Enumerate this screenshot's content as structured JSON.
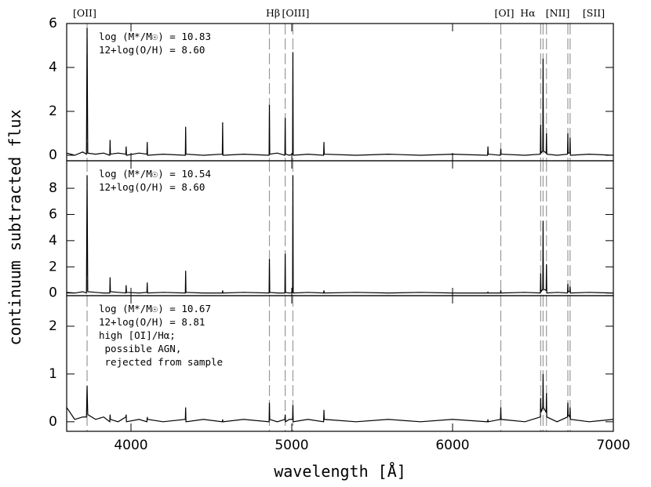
{
  "chart_data": [
    {
      "type": "line",
      "xlim": [
        3600,
        7000
      ],
      "ylim": [
        -0.25,
        6
      ],
      "yticks": [
        0,
        2,
        4,
        6
      ],
      "annotation": [
        "log (M*/M☉) = 10.83",
        "12+log(O/H) = 8.60"
      ],
      "line_labels": [
        {
          "text": "[OII]",
          "x": 3712
        },
        {
          "text": "Hβ",
          "x": 4883
        },
        {
          "text": "[OIII]",
          "x": 5024
        },
        {
          "text": "[OI]",
          "x": 6322
        },
        {
          "text": "Hα",
          "x": 6468
        },
        {
          "text": "[NII]",
          "x": 6654
        },
        {
          "text": "[SII]",
          "x": 6878
        }
      ],
      "reference_lines": [
        3727,
        4861,
        4959,
        5007,
        6300,
        6548,
        6563,
        6584,
        6717,
        6731
      ],
      "series": [
        {
          "color": "#000000",
          "x": [
            3600,
            3650,
            3700,
            3723,
            3727,
            3731,
            3780,
            3830,
            3868,
            3870,
            3872,
            3920,
            3968,
            3970,
            3972,
            4050,
            4099,
            4101,
            4103,
            4200,
            4338,
            4340,
            4342,
            4450,
            4568,
            4570,
            4572,
            4700,
            4859,
            4861,
            4863,
            4910,
            4957,
            4959,
            4961,
            4985,
            5005,
            5007,
            5009,
            5100,
            5198,
            5200,
            5202,
            5400,
            5600,
            5800,
            6000,
            6218,
            6220,
            6222,
            6298,
            6300,
            6302,
            6450,
            6546,
            6548,
            6550,
            6561,
            6563,
            6565,
            6582,
            6584,
            6586,
            6650,
            6715,
            6717,
            6719,
            6729,
            6731,
            6733,
            6850,
            7000
          ],
          "values": [
            0.1,
            0,
            0.15,
            0.05,
            5.8,
            0.1,
            0.05,
            0.1,
            0,
            0.7,
            0.05,
            0.1,
            0.05,
            0.4,
            0,
            0.1,
            0.05,
            0.6,
            0,
            0.05,
            0,
            1.3,
            0.05,
            0,
            0.05,
            1.5,
            0,
            0.05,
            0,
            2.3,
            0.05,
            0.1,
            0,
            1.7,
            0.05,
            0,
            0.05,
            4.7,
            0,
            0.05,
            0,
            0.6,
            0.05,
            0,
            0.05,
            0,
            0.05,
            0,
            0.4,
            0.05,
            0,
            0.3,
            0.05,
            0,
            0.05,
            1.4,
            0.1,
            0.2,
            4.4,
            0.2,
            0.1,
            1.0,
            0.05,
            0,
            0.05,
            1.0,
            0.1,
            0.1,
            0.8,
            0,
            0.05,
            0
          ]
        }
      ]
    },
    {
      "type": "line",
      "xlim": [
        3600,
        7000
      ],
      "ylim": [
        -0.2,
        10.1
      ],
      "yticks": [
        0,
        2,
        4,
        6,
        8
      ],
      "ylabel": "continuum subtracted flux",
      "annotation": [
        "log (M*/M☉) = 10.54",
        "12+log(O/H) = 8.60"
      ],
      "reference_lines": [
        3727,
        4861,
        4959,
        5007,
        6300,
        6548,
        6563,
        6584,
        6717,
        6731
      ],
      "series": [
        {
          "color": "#000000",
          "x": [
            3600,
            3650,
            3700,
            3723,
            3727,
            3731,
            3780,
            3830,
            3868,
            3870,
            3872,
            3920,
            3968,
            3970,
            3972,
            4050,
            4099,
            4101,
            4103,
            4200,
            4338,
            4340,
            4342,
            4450,
            4568,
            4570,
            4572,
            4700,
            4859,
            4861,
            4863,
            4910,
            4957,
            4959,
            4961,
            4985,
            5005,
            5007,
            5009,
            5100,
            5198,
            5200,
            5202,
            5400,
            5600,
            5800,
            6000,
            6218,
            6220,
            6222,
            6298,
            6300,
            6302,
            6450,
            6546,
            6548,
            6550,
            6561,
            6563,
            6565,
            6582,
            6584,
            6586,
            6650,
            6715,
            6717,
            6719,
            6729,
            6731,
            6733,
            6850,
            7000
          ],
          "values": [
            0.05,
            0,
            0.1,
            0,
            9.0,
            0.1,
            0.05,
            0,
            0,
            1.2,
            0.1,
            0.05,
            0,
            0.6,
            0.05,
            0,
            0.05,
            0.8,
            0,
            0.05,
            0,
            1.7,
            0.05,
            0,
            0,
            0.2,
            0,
            0.05,
            0,
            2.6,
            0.05,
            0,
            0,
            3.0,
            0.05,
            0,
            0.05,
            9.0,
            0,
            0.05,
            0,
            0.2,
            0,
            0.05,
            0,
            0.05,
            0,
            0,
            0.1,
            0,
            0,
            0.2,
            0,
            0.05,
            0,
            1.5,
            0.1,
            0.3,
            5.5,
            0.3,
            0.2,
            2.2,
            0,
            0.05,
            0,
            0.7,
            0.1,
            0.1,
            0.5,
            0,
            0.05,
            0
          ]
        }
      ]
    },
    {
      "type": "line",
      "xlim": [
        3600,
        7000
      ],
      "ylim": [
        -0.2,
        2.64
      ],
      "yticks": [
        0,
        1,
        2
      ],
      "xticks": [
        4000,
        5000,
        6000,
        7000
      ],
      "xlabel": "wavelength [Å]",
      "annotation": [
        "log (M*/M☉) = 10.67",
        "12+log(O/H) = 8.81",
        "high [OI]/Hα;",
        " possible AGN,",
        " rejected from sample"
      ],
      "reference_lines": [
        3727,
        4861,
        4959,
        5007,
        6300,
        6548,
        6563,
        6584,
        6717,
        6731
      ],
      "series": [
        {
          "color": "#000000",
          "x": [
            3600,
            3650,
            3700,
            3723,
            3727,
            3731,
            3780,
            3830,
            3868,
            3870,
            3872,
            3920,
            3968,
            3970,
            3972,
            4050,
            4099,
            4101,
            4103,
            4200,
            4338,
            4340,
            4342,
            4450,
            4568,
            4570,
            4572,
            4700,
            4859,
            4861,
            4863,
            4910,
            4957,
            4959,
            4961,
            4985,
            5005,
            5007,
            5009,
            5100,
            5198,
            5200,
            5202,
            5400,
            5600,
            5800,
            6000,
            6218,
            6220,
            6222,
            6298,
            6300,
            6302,
            6450,
            6546,
            6548,
            6550,
            6561,
            6563,
            6565,
            6582,
            6584,
            6586,
            6650,
            6715,
            6717,
            6719,
            6729,
            6731,
            6733,
            6850,
            7000
          ],
          "values": [
            0.3,
            0.05,
            0.1,
            0.1,
            0.75,
            0.15,
            0.05,
            0.1,
            0,
            0.15,
            0.05,
            0,
            0.1,
            0.15,
            0,
            0.05,
            0,
            0.1,
            0.05,
            0,
            0.05,
            0.3,
            0,
            0.05,
            0,
            0.05,
            0,
            0.05,
            0,
            0.4,
            0.05,
            0,
            0.05,
            0.15,
            0,
            0.05,
            0.05,
            0.35,
            0,
            0.05,
            0,
            0.25,
            0.05,
            0,
            0.05,
            0,
            0.05,
            0,
            0.05,
            0,
            0.05,
            0.3,
            0.05,
            0,
            0.1,
            0.5,
            0.2,
            0.3,
            1.0,
            0.3,
            0.2,
            0.6,
            0.1,
            0,
            0.1,
            0.4,
            0.15,
            0.1,
            0.3,
            0.05,
            0,
            0.05
          ]
        }
      ]
    }
  ]
}
